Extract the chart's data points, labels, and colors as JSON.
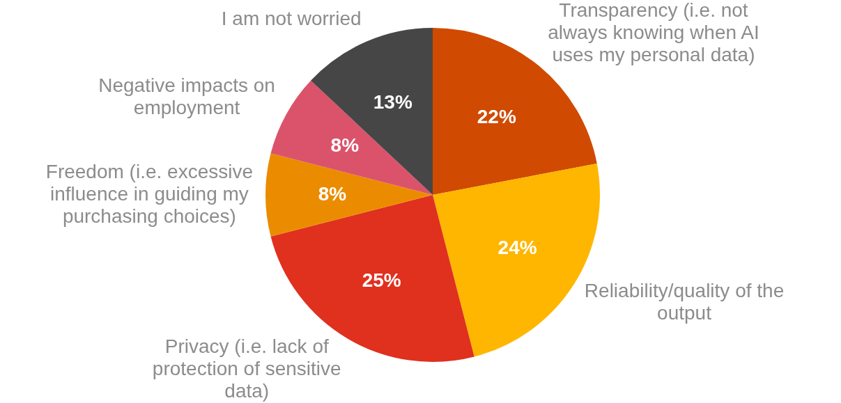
{
  "chart_data": {
    "type": "pie",
    "categories": [
      "Transparency (i.e. not always knowing when AI uses my personal data)",
      "Reliability/quality of the output",
      "Privacy (i.e. lack of protection of sensitive data)",
      "Freedom (i.e. excessive influence in guiding my purchasing choices)",
      "Negative impacts on employment",
      "I am not worried"
    ],
    "values": [
      22,
      24,
      25,
      8,
      8,
      13
    ],
    "value_labels": [
      "22%",
      "24%",
      "25%",
      "8%",
      "8%",
      "13%"
    ],
    "colors": [
      "#d04a02",
      "#ffb600",
      "#e0301e",
      "#eb8c00",
      "#db536a",
      "#464646"
    ],
    "legend": false
  }
}
